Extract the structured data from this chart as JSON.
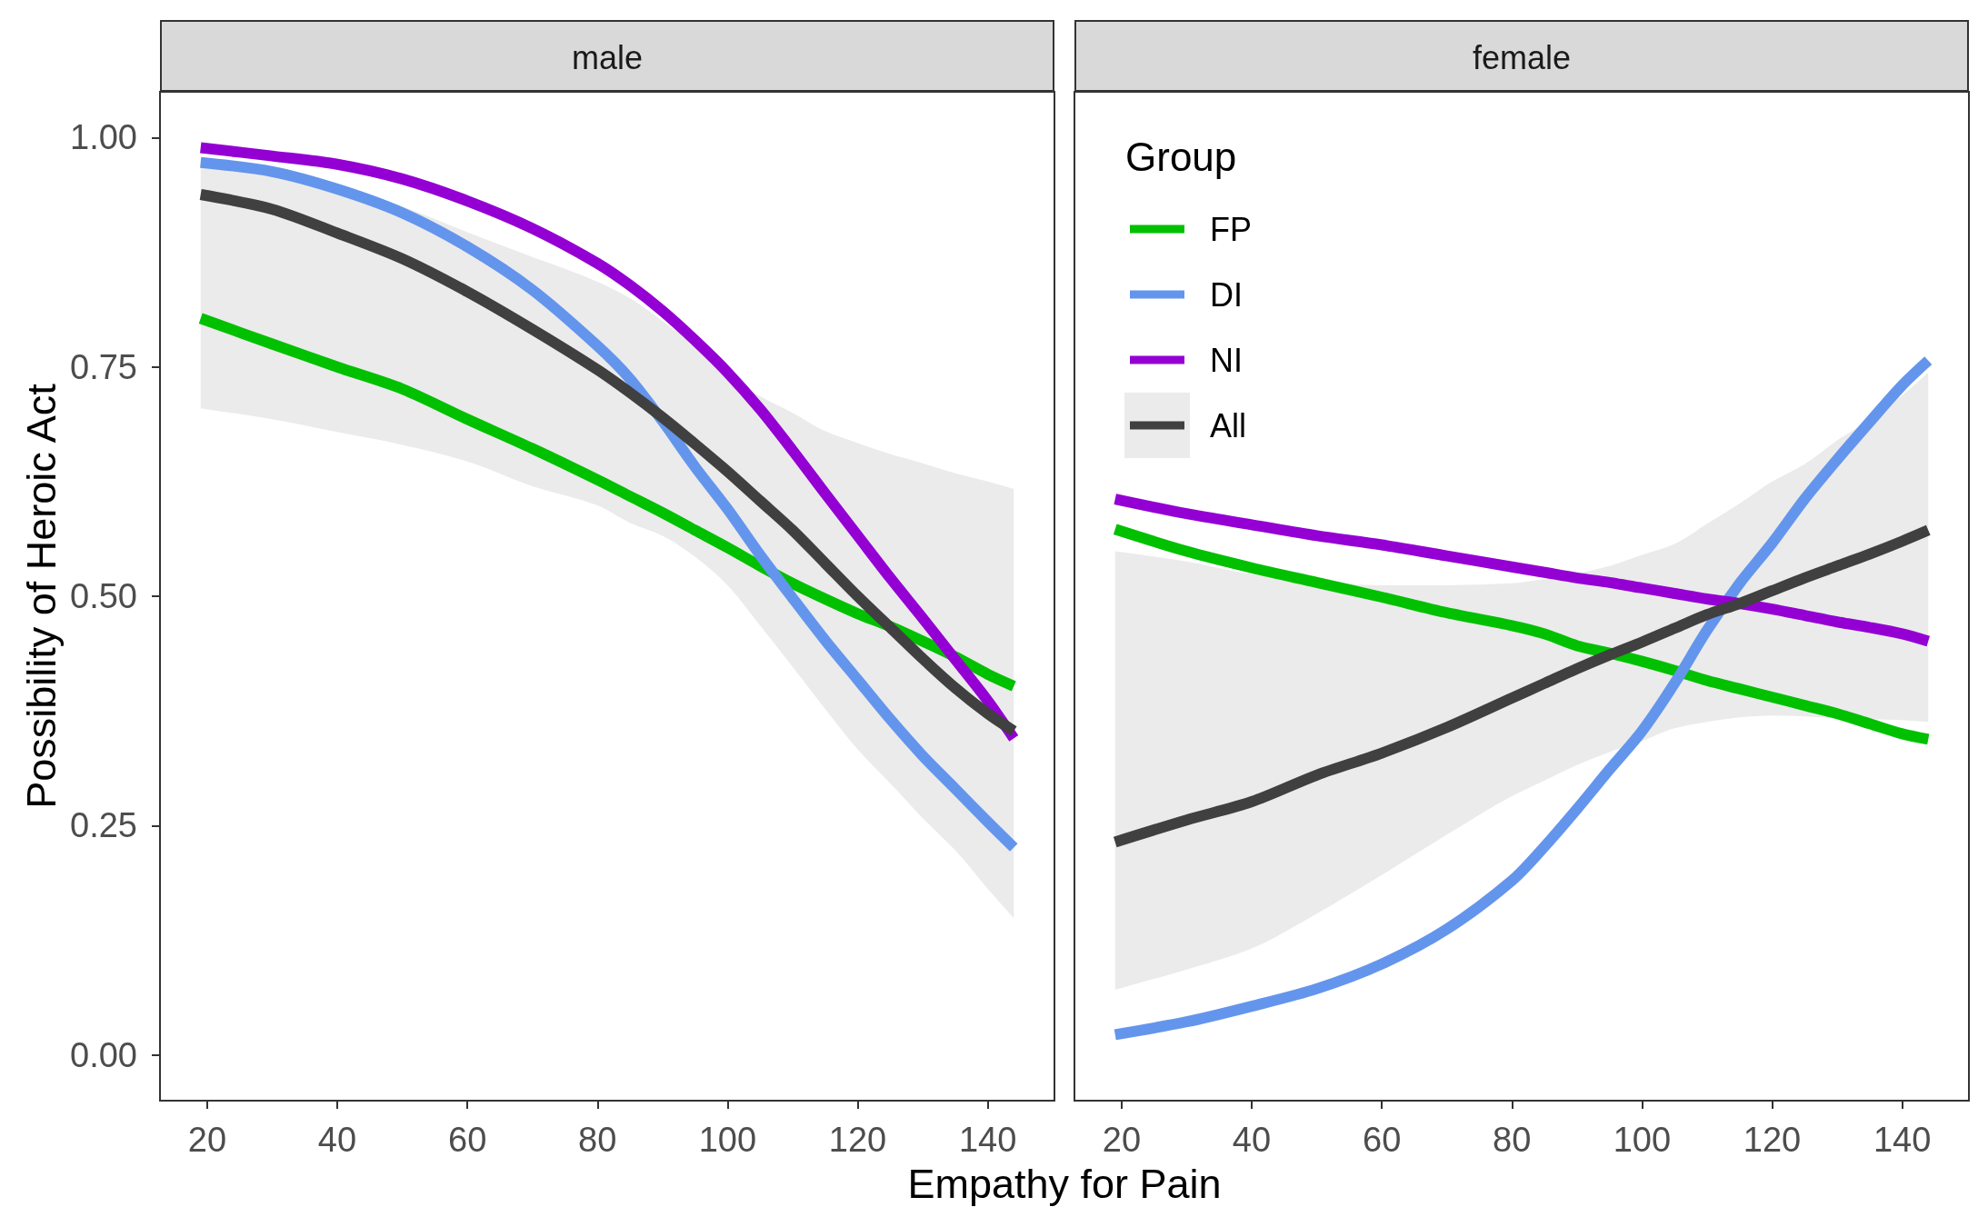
{
  "chart_data": [
    {
      "type": "line",
      "title": "male",
      "xlabel": "Empathy for Pain",
      "ylabel": "Possibility of Heroic Act",
      "x": [
        19,
        30,
        40,
        50,
        60,
        70,
        80,
        85,
        90,
        95,
        100,
        105,
        110,
        115,
        120,
        125,
        130,
        135,
        140,
        144
      ],
      "series": [
        {
          "color": "#00c000",
          "values": [
            0.803,
            0.775,
            0.75,
            0.726,
            0.693,
            0.661,
            0.627,
            0.609,
            0.591,
            0.572,
            0.553,
            0.533,
            0.514,
            0.497,
            0.481,
            0.467,
            0.451,
            0.434,
            0.415,
            0.402
          ]
        },
        {
          "color": "#6495ed",
          "values": [
            0.973,
            0.963,
            0.944,
            0.918,
            0.881,
            0.834,
            0.773,
            0.737,
            0.691,
            0.641,
            0.595,
            0.545,
            0.498,
            0.452,
            0.409,
            0.366,
            0.326,
            0.29,
            0.254,
            0.226
          ]
        },
        {
          "color": "#9400d3",
          "values": [
            0.989,
            0.98,
            0.971,
            0.955,
            0.931,
            0.901,
            0.863,
            0.839,
            0.811,
            0.779,
            0.744,
            0.704,
            0.659,
            0.612,
            0.566,
            0.52,
            0.476,
            0.431,
            0.386,
            0.345
          ]
        },
        {
          "color": "#404040",
          "values": [
            0.938,
            0.922,
            0.896,
            0.868,
            0.832,
            0.791,
            0.747,
            0.722,
            0.695,
            0.666,
            0.636,
            0.604,
            0.572,
            0.536,
            0.5,
            0.466,
            0.432,
            0.4,
            0.372,
            0.353
          ],
          "lower": [
            0.705,
            0.693,
            0.679,
            0.665,
            0.647,
            0.62,
            0.599,
            0.58,
            0.566,
            0.543,
            0.512,
            0.468,
            0.423,
            0.377,
            0.333,
            0.296,
            0.258,
            0.223,
            0.181,
            0.149
          ],
          "upper": [
            0.977,
            0.965,
            0.948,
            0.925,
            0.897,
            0.87,
            0.843,
            0.825,
            0.8,
            0.773,
            0.742,
            0.718,
            0.7,
            0.68,
            0.667,
            0.655,
            0.645,
            0.634,
            0.625,
            0.617
          ]
        }
      ],
      "xlim": [
        12.75,
        150.25
      ],
      "xticks": [
        20,
        40,
        60,
        80,
        100,
        120,
        140
      ],
      "ylim": [
        -0.05,
        1.05
      ],
      "yticks": [
        {
          "value": 0,
          "label": "0.00"
        },
        {
          "value": 0.25,
          "label": "0.25"
        },
        {
          "value": 0.5,
          "label": "0.50"
        },
        {
          "value": 0.75,
          "label": "0.75"
        },
        {
          "value": 1,
          "label": "1.00"
        }
      ]
    },
    {
      "type": "line",
      "title": "female",
      "legend": "top left",
      "legend_title": "Group",
      "tick_labels": "x",
      "x": [
        19,
        30,
        40,
        50,
        60,
        70,
        80,
        85,
        90,
        95,
        100,
        105,
        110,
        115,
        120,
        125,
        130,
        135,
        140,
        144
      ],
      "series": [
        {
          "name": "FP",
          "color": "#00c000",
          "values": [
            0.573,
            0.549,
            0.531,
            0.515,
            0.499,
            0.482,
            0.468,
            0.459,
            0.446,
            0.438,
            0.429,
            0.419,
            0.408,
            0.399,
            0.39,
            0.381,
            0.372,
            0.361,
            0.35,
            0.344
          ]
        },
        {
          "name": "DI",
          "color": "#6495ed",
          "values": [
            0.022,
            0.036,
            0.053,
            0.072,
            0.099,
            0.137,
            0.19,
            0.227,
            0.268,
            0.311,
            0.353,
            0.405,
            0.463,
            0.514,
            0.558,
            0.606,
            0.649,
            0.69,
            0.73,
            0.757
          ]
        },
        {
          "name": "NI",
          "color": "#9400d3",
          "values": [
            0.606,
            0.59,
            0.578,
            0.566,
            0.556,
            0.544,
            0.532,
            0.526,
            0.52,
            0.515,
            0.509,
            0.503,
            0.497,
            0.492,
            0.486,
            0.479,
            0.472,
            0.466,
            0.459,
            0.451
          ]
        },
        {
          "name": "All",
          "color": "#404040",
          "values": [
            0.232,
            0.256,
            0.276,
            0.305,
            0.329,
            0.357,
            0.389,
            0.405,
            0.421,
            0.436,
            0.45,
            0.465,
            0.48,
            0.492,
            0.506,
            0.52,
            0.533,
            0.546,
            0.56,
            0.572
          ],
          "lower": [
            0.071,
            0.093,
            0.116,
            0.154,
            0.196,
            0.24,
            0.282,
            0.299,
            0.316,
            0.33,
            0.342,
            0.356,
            0.363,
            0.368,
            0.37,
            0.369,
            0.367,
            0.366,
            0.365,
            0.363
          ],
          "upper": [
            0.549,
            0.538,
            0.524,
            0.515,
            0.512,
            0.512,
            0.514,
            0.519,
            0.525,
            0.533,
            0.545,
            0.557,
            0.579,
            0.601,
            0.625,
            0.644,
            0.67,
            0.692,
            0.719,
            0.744
          ]
        }
      ],
      "xlim": [
        12.75,
        150.25
      ],
      "xticks": [
        20,
        40,
        60,
        80,
        100,
        120,
        140
      ],
      "ylim": [
        -0.05,
        1.05
      ]
    }
  ]
}
